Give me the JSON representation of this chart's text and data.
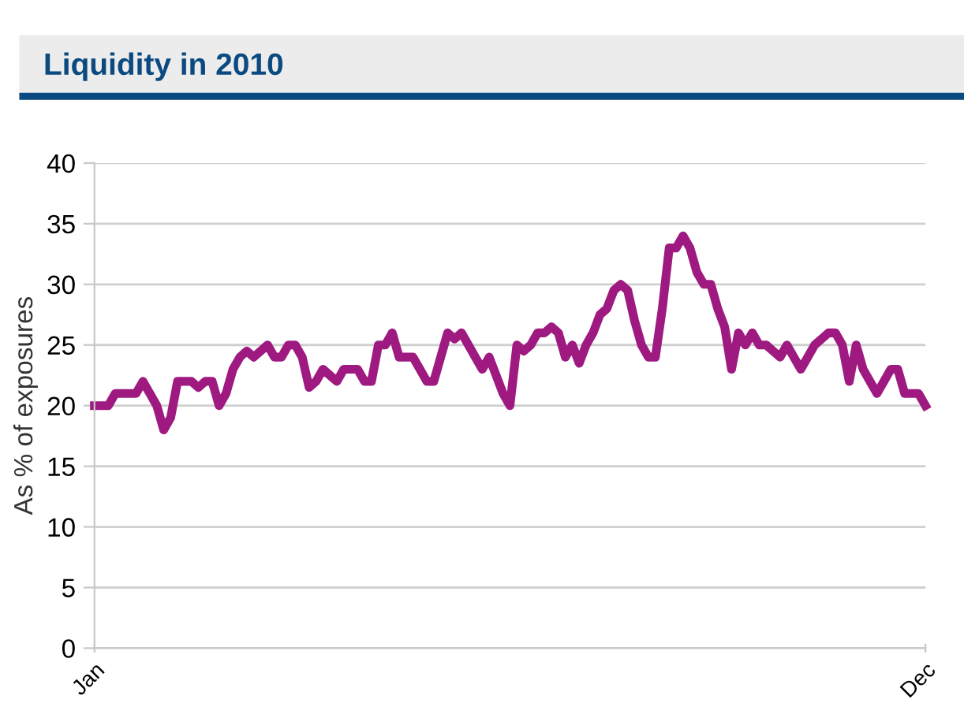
{
  "chart_data": {
    "type": "line",
    "title": "Liquidity in 2010",
    "ylabel": "As % of exposures",
    "ylim": [
      0,
      40
    ],
    "yticks": [
      0,
      5,
      10,
      15,
      20,
      25,
      30,
      35,
      40
    ],
    "grid": "y",
    "legend": false,
    "marker": "none",
    "line_style": "solid",
    "categories": [
      "Jan",
      null,
      null,
      null,
      null,
      null,
      null,
      null,
      null,
      null,
      null,
      null,
      null,
      null,
      null,
      null,
      null,
      null,
      null,
      null,
      null,
      null,
      null,
      null,
      null,
      null,
      null,
      null,
      null,
      null,
      null,
      null,
      null,
      null,
      null,
      null,
      null,
      null,
      null,
      null,
      null,
      null,
      null,
      null,
      null,
      null,
      null,
      null,
      null,
      null,
      null,
      null,
      null,
      null,
      null,
      null,
      null,
      null,
      null,
      null,
      null,
      null,
      null,
      null,
      null,
      null,
      null,
      null,
      null,
      null,
      null,
      null,
      null,
      null,
      null,
      null,
      null,
      null,
      null,
      null,
      null,
      null,
      null,
      null,
      null,
      null,
      null,
      null,
      null,
      null,
      null,
      null,
      null,
      null,
      null,
      null,
      null,
      null,
      null,
      null,
      null,
      null,
      null,
      null,
      null,
      null,
      null,
      null,
      null,
      null,
      null,
      null,
      null,
      null,
      null,
      null,
      null,
      null,
      null,
      null,
      "Dec"
    ],
    "series": [
      {
        "color": "#9e1a80",
        "values": [
          20,
          20,
          20,
          21,
          21,
          21,
          21,
          22,
          21,
          20,
          18,
          19,
          22,
          22,
          22,
          21.5,
          22,
          22,
          20,
          21,
          23,
          24,
          24.5,
          24,
          24.5,
          25,
          24,
          24,
          25,
          25,
          24,
          21.5,
          22,
          23,
          22.5,
          22,
          23,
          23,
          23,
          22,
          22,
          25,
          25,
          26,
          24,
          24,
          24,
          23,
          22,
          22,
          24,
          26,
          25.5,
          26,
          25,
          24,
          23,
          24,
          22.5,
          21,
          20,
          25,
          24.5,
          25,
          26,
          26,
          26.5,
          26,
          24,
          25,
          23.5,
          25,
          26,
          27.5,
          28,
          29.5,
          30,
          29.5,
          27,
          25,
          24,
          24,
          28,
          33,
          33,
          34,
          33,
          31,
          30,
          30,
          28,
          26.5,
          23,
          26,
          25,
          26,
          25,
          25,
          24.5,
          24,
          25,
          24,
          23,
          24,
          25,
          25.5,
          26,
          26,
          25,
          22,
          25,
          23,
          22,
          21,
          22,
          23,
          23,
          21,
          21,
          21,
          20
        ]
      }
    ]
  }
}
